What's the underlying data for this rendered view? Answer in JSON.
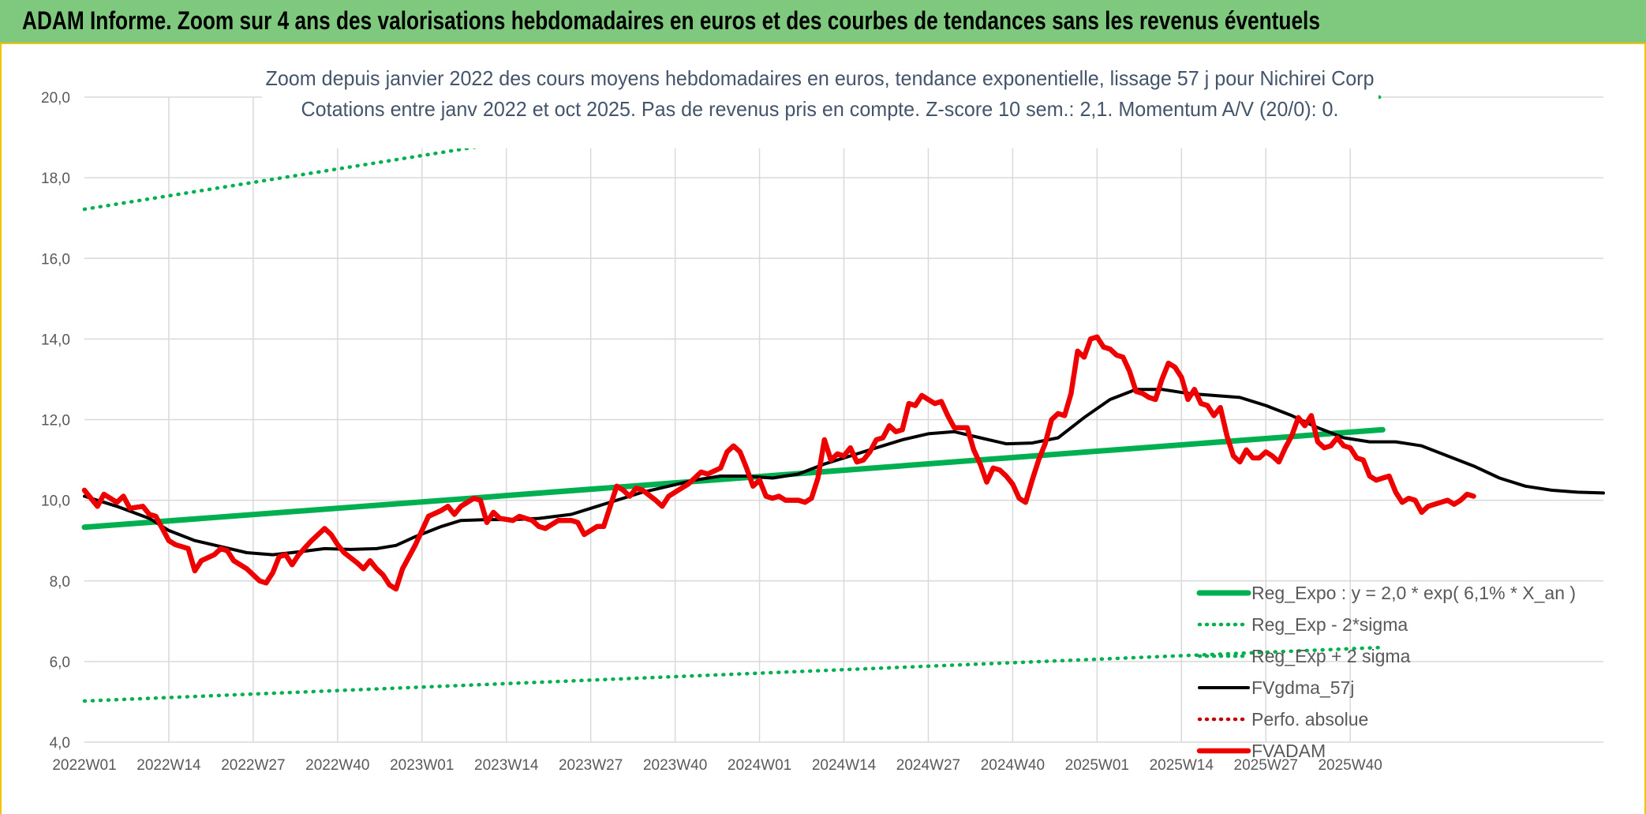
{
  "header": {
    "title": "ADAM Informe. Zoom sur 4 ans des valorisations hebdomadaires en euros et des courbes de tendances sans les revenus éventuels"
  },
  "colors": {
    "header_bg": "#7fc97f",
    "accent_border": "#f2c400",
    "trend_green": "#00b050",
    "fvgdma_black": "#000000",
    "fvadam_red": "#ee0000",
    "perfo_red": "#c00000"
  },
  "chart_data": {
    "type": "line",
    "title": "Zoom depuis janvier 2022 des cours moyens hebdomadaires en euros, tendance exponentielle, lissage 57 j pour Nichirei Corp",
    "subtitle": "Cotations entre janv 2022 et oct 2025. Pas de revenus pris en compte. Z-score 10 sem.: 2,1. Momentum A/V (20/0): 0.",
    "xlabel": "",
    "ylabel": "",
    "ylim": [
      4.0,
      20.0
    ],
    "yticks": [
      "4,0",
      "6,0",
      "8,0",
      "10,0",
      "12,0",
      "14,0",
      "16,0",
      "18,0",
      "20,0"
    ],
    "x_tick_labels": [
      "2022W01",
      "2022W14",
      "2022W27",
      "2022W40",
      "2023W01",
      "2023W14",
      "2023W27",
      "2023W40",
      "2024W01",
      "2024W14",
      "2024W27",
      "2024W40",
      "2025W01",
      "2025W14",
      "2025W27",
      "2025W40"
    ],
    "x_range_weeks": [
      0,
      200
    ],
    "grid": true,
    "legend_position": "bottom-right",
    "series": [
      {
        "name": "Reg_Expo : y = 2,0 * exp( 6,1% *  X_an )",
        "style": "solid-thick",
        "color": "#00b050",
        "points": [
          [
            0,
            9.33
          ],
          [
            200,
            11.75
          ]
        ]
      },
      {
        "name": "Reg_Exp - 2*sigma",
        "style": "dotted",
        "color": "#00b050",
        "points": [
          [
            0,
            5.02
          ],
          [
            200,
            6.35
          ]
        ]
      },
      {
        "name": "Reg_Exp + 2 sigma",
        "style": "dotted",
        "color": "#00b050",
        "points": [
          [
            0,
            17.22
          ],
          [
            93,
            19.6
          ],
          [
            170,
            20.0
          ],
          [
            200,
            20.0
          ]
        ]
      },
      {
        "name": "FVgdma_57j",
        "style": "solid",
        "color": "#000000",
        "points": [
          [
            0,
            10.1
          ],
          [
            5,
            9.85
          ],
          [
            10,
            9.55
          ],
          [
            13,
            9.25
          ],
          [
            17,
            9.0
          ],
          [
            21,
            8.85
          ],
          [
            25,
            8.7
          ],
          [
            29,
            8.65
          ],
          [
            33,
            8.72
          ],
          [
            37,
            8.8
          ],
          [
            41,
            8.78
          ],
          [
            45,
            8.8
          ],
          [
            48,
            8.88
          ],
          [
            51,
            9.1
          ],
          [
            55,
            9.35
          ],
          [
            58,
            9.5
          ],
          [
            62,
            9.52
          ],
          [
            66,
            9.52
          ],
          [
            70,
            9.55
          ],
          [
            75,
            9.65
          ],
          [
            78,
            9.8
          ],
          [
            82,
            10.0
          ],
          [
            86,
            10.2
          ],
          [
            90,
            10.35
          ],
          [
            94,
            10.5
          ],
          [
            98,
            10.6
          ],
          [
            102,
            10.6
          ],
          [
            106,
            10.55
          ],
          [
            110,
            10.65
          ],
          [
            114,
            10.9
          ],
          [
            118,
            11.1
          ],
          [
            122,
            11.3
          ],
          [
            126,
            11.5
          ],
          [
            130,
            11.65
          ],
          [
            134,
            11.7
          ],
          [
            138,
            11.55
          ],
          [
            142,
            11.4
          ],
          [
            146,
            11.42
          ],
          [
            150,
            11.55
          ],
          [
            154,
            12.05
          ],
          [
            158,
            12.5
          ],
          [
            162,
            12.75
          ],
          [
            166,
            12.75
          ],
          [
            170,
            12.65
          ],
          [
            174,
            12.6
          ],
          [
            178,
            12.55
          ],
          [
            182,
            12.35
          ],
          [
            186,
            12.1
          ],
          [
            190,
            11.8
          ],
          [
            194,
            11.55
          ],
          [
            198,
            11.45
          ],
          [
            202,
            11.45
          ],
          [
            206,
            11.35
          ],
          [
            210,
            11.1
          ],
          [
            214,
            10.85
          ],
          [
            218,
            10.55
          ],
          [
            222,
            10.35
          ],
          [
            226,
            10.25
          ],
          [
            230,
            10.2
          ],
          [
            234,
            10.18
          ]
        ]
      },
      {
        "name": "Perfo. absolue",
        "style": "dotted",
        "color": "#c00000",
        "points": []
      },
      {
        "name": "FVADAM",
        "style": "solid-thick",
        "color": "#ee0000",
        "points": [
          [
            0,
            10.25
          ],
          [
            2,
            9.85
          ],
          [
            3,
            10.15
          ],
          [
            5,
            9.95
          ],
          [
            6,
            10.1
          ],
          [
            7,
            9.8
          ],
          [
            9,
            9.85
          ],
          [
            10,
            9.65
          ],
          [
            11,
            9.6
          ],
          [
            12,
            9.3
          ],
          [
            13,
            9.0
          ],
          [
            14,
            8.9
          ],
          [
            15,
            8.85
          ],
          [
            16,
            8.8
          ],
          [
            17,
            8.25
          ],
          [
            18,
            8.5
          ],
          [
            20,
            8.65
          ],
          [
            21,
            8.8
          ],
          [
            22,
            8.75
          ],
          [
            23,
            8.5
          ],
          [
            25,
            8.3
          ],
          [
            27,
            8.0
          ],
          [
            28,
            7.95
          ],
          [
            29,
            8.2
          ],
          [
            30,
            8.6
          ],
          [
            31,
            8.65
          ],
          [
            32,
            8.4
          ],
          [
            33,
            8.65
          ],
          [
            35,
            9.0
          ],
          [
            36,
            9.15
          ],
          [
            37,
            9.3
          ],
          [
            38,
            9.15
          ],
          [
            39,
            8.9
          ],
          [
            40,
            8.7
          ],
          [
            42,
            8.45
          ],
          [
            43,
            8.3
          ],
          [
            44,
            8.5
          ],
          [
            45,
            8.3
          ],
          [
            46,
            8.15
          ],
          [
            47,
            7.9
          ],
          [
            48,
            7.8
          ],
          [
            49,
            8.3
          ],
          [
            51,
            8.9
          ],
          [
            53,
            9.6
          ],
          [
            55,
            9.75
          ],
          [
            56,
            9.85
          ],
          [
            57,
            9.65
          ],
          [
            58,
            9.85
          ],
          [
            60,
            10.05
          ],
          [
            61,
            10.0
          ],
          [
            62,
            9.45
          ],
          [
            63,
            9.7
          ],
          [
            64,
            9.55
          ],
          [
            66,
            9.5
          ],
          [
            67,
            9.6
          ],
          [
            69,
            9.5
          ],
          [
            70,
            9.35
          ],
          [
            71,
            9.3
          ],
          [
            72,
            9.4
          ],
          [
            73,
            9.5
          ],
          [
            75,
            9.5
          ],
          [
            76,
            9.45
          ],
          [
            77,
            9.15
          ],
          [
            78,
            9.25
          ],
          [
            79,
            9.35
          ],
          [
            80,
            9.35
          ],
          [
            82,
            10.35
          ],
          [
            83,
            10.25
          ],
          [
            84,
            10.1
          ],
          [
            85,
            10.3
          ],
          [
            86,
            10.25
          ],
          [
            88,
            10.0
          ],
          [
            89,
            9.85
          ],
          [
            90,
            10.1
          ],
          [
            92,
            10.3
          ],
          [
            93,
            10.4
          ],
          [
            95,
            10.7
          ],
          [
            96,
            10.65
          ],
          [
            98,
            10.8
          ],
          [
            99,
            11.2
          ],
          [
            100,
            11.35
          ],
          [
            101,
            11.2
          ],
          [
            102,
            10.8
          ],
          [
            103,
            10.35
          ],
          [
            104,
            10.5
          ],
          [
            105,
            10.1
          ],
          [
            106,
            10.05
          ],
          [
            107,
            10.1
          ],
          [
            108,
            10.0
          ],
          [
            110,
            10.0
          ],
          [
            111,
            9.95
          ],
          [
            112,
            10.05
          ],
          [
            113,
            10.55
          ],
          [
            114,
            11.5
          ],
          [
            115,
            11.0
          ],
          [
            116,
            11.15
          ],
          [
            117,
            11.1
          ],
          [
            118,
            11.3
          ],
          [
            119,
            10.95
          ],
          [
            120,
            11.0
          ],
          [
            121,
            11.2
          ],
          [
            122,
            11.5
          ],
          [
            123,
            11.55
          ],
          [
            124,
            11.85
          ],
          [
            125,
            11.7
          ],
          [
            126,
            11.75
          ],
          [
            127,
            12.4
          ],
          [
            128,
            12.35
          ],
          [
            129,
            12.6
          ],
          [
            130,
            12.5
          ],
          [
            131,
            12.4
          ],
          [
            132,
            12.45
          ],
          [
            133,
            12.1
          ],
          [
            134,
            11.8
          ],
          [
            136,
            11.8
          ],
          [
            137,
            11.25
          ],
          [
            138,
            10.9
          ],
          [
            139,
            10.45
          ],
          [
            140,
            10.8
          ],
          [
            141,
            10.75
          ],
          [
            142,
            10.6
          ],
          [
            143,
            10.4
          ],
          [
            144,
            10.05
          ],
          [
            145,
            9.95
          ],
          [
            146,
            10.5
          ],
          [
            147,
            11.0
          ],
          [
            148,
            11.4
          ],
          [
            149,
            12.0
          ],
          [
            150,
            12.15
          ],
          [
            151,
            12.1
          ],
          [
            152,
            12.65
          ],
          [
            153,
            13.7
          ],
          [
            154,
            13.55
          ],
          [
            155,
            14.0
          ],
          [
            156,
            14.05
          ],
          [
            157,
            13.8
          ],
          [
            158,
            13.75
          ],
          [
            159,
            13.6
          ],
          [
            160,
            13.55
          ],
          [
            161,
            13.2
          ],
          [
            162,
            12.7
          ],
          [
            163,
            12.65
          ],
          [
            164,
            12.55
          ],
          [
            165,
            12.5
          ],
          [
            166,
            13.0
          ],
          [
            167,
            13.4
          ],
          [
            168,
            13.3
          ],
          [
            169,
            13.05
          ],
          [
            170,
            12.5
          ],
          [
            171,
            12.75
          ],
          [
            172,
            12.4
          ],
          [
            173,
            12.35
          ],
          [
            174,
            12.1
          ],
          [
            175,
            12.3
          ],
          [
            176,
            11.6
          ],
          [
            177,
            11.1
          ],
          [
            178,
            10.95
          ],
          [
            179,
            11.25
          ],
          [
            180,
            11.05
          ],
          [
            181,
            11.05
          ],
          [
            182,
            11.2
          ],
          [
            183,
            11.1
          ],
          [
            184,
            10.95
          ],
          [
            185,
            11.3
          ],
          [
            186,
            11.6
          ],
          [
            187,
            12.05
          ],
          [
            188,
            11.85
          ],
          [
            189,
            12.1
          ],
          [
            190,
            11.45
          ],
          [
            191,
            11.3
          ],
          [
            192,
            11.35
          ],
          [
            193,
            11.55
          ],
          [
            194,
            11.35
          ],
          [
            195,
            11.3
          ],
          [
            196,
            11.05
          ],
          [
            197,
            11.0
          ],
          [
            198,
            10.6
          ],
          [
            199,
            10.5
          ],
          [
            200,
            10.55
          ],
          [
            201,
            10.6
          ],
          [
            202,
            10.2
          ],
          [
            203,
            9.95
          ],
          [
            204,
            10.05
          ],
          [
            205,
            10.0
          ],
          [
            206,
            9.7
          ],
          [
            207,
            9.85
          ],
          [
            208,
            9.9
          ],
          [
            209,
            9.95
          ],
          [
            210,
            10.0
          ],
          [
            211,
            9.9
          ],
          [
            212,
            10.0
          ],
          [
            213,
            10.15
          ],
          [
            214,
            10.1
          ]
        ]
      }
    ]
  }
}
